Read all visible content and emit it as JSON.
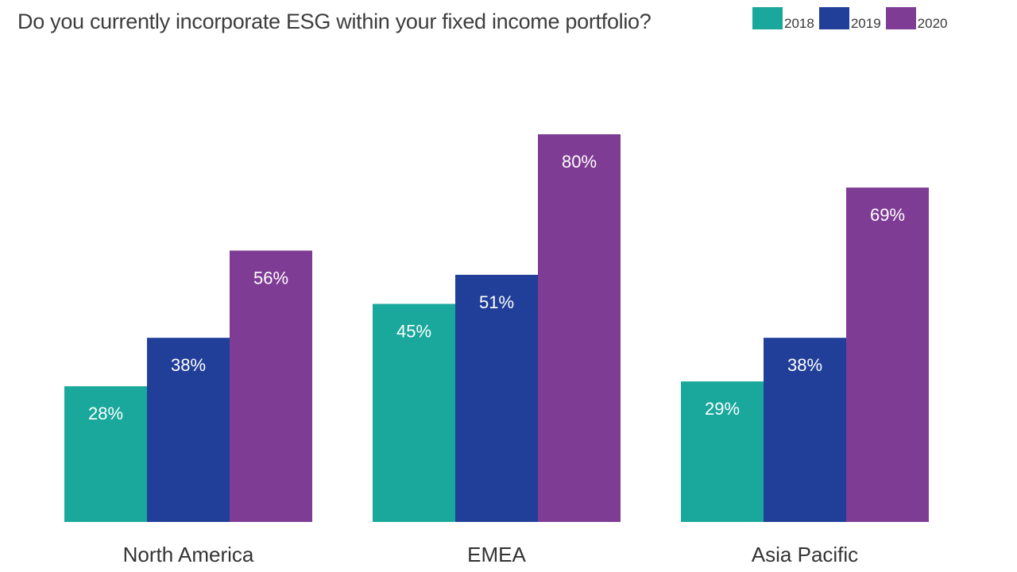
{
  "chart_data": {
    "type": "bar",
    "title": "Do you currently incorporate ESG within your fixed income portfolio?",
    "categories": [
      "North America",
      "EMEA",
      "Asia Pacific"
    ],
    "series": [
      {
        "name": "2018",
        "color": "#19a89b",
        "values": [
          28,
          45,
          29
        ],
        "labels": [
          "28%",
          "45%",
          "29%"
        ]
      },
      {
        "name": "2019",
        "color": "#213f99",
        "values": [
          38,
          51,
          38
        ],
        "labels": [
          "38%",
          "51%",
          "38%"
        ]
      },
      {
        "name": "2020",
        "color": "#7f3c95",
        "values": [
          56,
          80,
          69
        ],
        "labels": [
          "56%",
          "80%",
          "69%"
        ]
      }
    ],
    "ylim": [
      0,
      100
    ],
    "grid": false,
    "legend_position": "top-right",
    "value_suffix": "%"
  }
}
